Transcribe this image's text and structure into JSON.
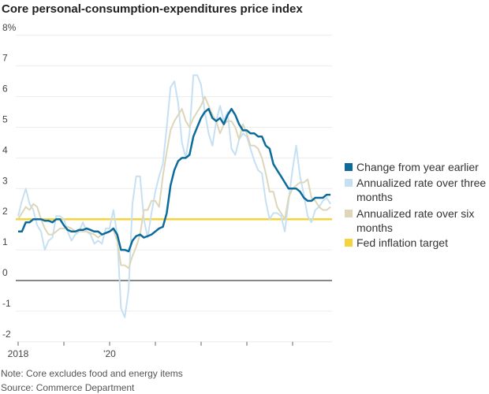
{
  "title": "Core personal-consumption-expenditures price index",
  "notes": [
    "Note: Core excludes food and energy items",
    "Source: Commerce Department"
  ],
  "chart_data": {
    "type": "line",
    "title": "Core personal-consumption-expenditures price index",
    "xlabel": "",
    "ylabel": "",
    "x_start": "2018-01",
    "x_freq": "monthly",
    "x_tick_labels": [
      "2018",
      "'20"
    ],
    "y_ticks": [
      8,
      7,
      6,
      5,
      4,
      3,
      2,
      1,
      0,
      -1,
      -2
    ],
    "y_tick_labels": [
      "8%",
      "7",
      "6",
      "5",
      "4",
      "3",
      "2",
      "1",
      "0",
      "-1",
      "-2"
    ],
    "ylim": [
      -2,
      8
    ],
    "grid": true,
    "legend_placement": "right",
    "reference_line": {
      "name": "Fed inflation target",
      "value": 2,
      "color": "#f5d33f"
    },
    "series": [
      {
        "name": "Annualized rate over three months",
        "color": "#c6e0f3",
        "values": [
          2.1,
          2.6,
          3.0,
          2.5,
          2.3,
          1.8,
          1.6,
          1.0,
          1.3,
          1.4,
          2.1,
          2.1,
          2.0,
          1.6,
          1.3,
          1.5,
          1.6,
          1.9,
          1.6,
          1.5,
          1.2,
          1.3,
          1.2,
          1.7,
          1.7,
          2.3,
          1.5,
          -0.9,
          -1.2,
          -0.3,
          2.5,
          3.4,
          3.4,
          2.0,
          1.4,
          2.2,
          2.9,
          3.4,
          3.8,
          5.0,
          6.3,
          6.5,
          5.8,
          4.5,
          4.0,
          4.8,
          6.7,
          6.7,
          6.4,
          5.5,
          4.8,
          4.4,
          5.2,
          5.7,
          5.2,
          5.5,
          4.3,
          4.1,
          4.6,
          4.8,
          4.7,
          4.3,
          3.9,
          3.6,
          3.5,
          2.6,
          2.0,
          2.2,
          2.2,
          2.1,
          1.6,
          2.6,
          3.6,
          4.4,
          3.4,
          2.8,
          2.1,
          1.9,
          2.3,
          2.4,
          2.6,
          2.7,
          2.5
        ]
      },
      {
        "name": "Annualized rate over six months",
        "color": "#ddd6b8",
        "values": [
          2.0,
          2.2,
          2.4,
          2.3,
          2.5,
          2.4,
          2.0,
          1.7,
          1.5,
          1.5,
          1.6,
          1.7,
          1.7,
          1.75,
          1.7,
          1.6,
          1.6,
          1.6,
          1.6,
          1.55,
          1.5,
          1.4,
          1.5,
          1.55,
          1.6,
          1.65,
          1.3,
          0.5,
          0.5,
          0.4,
          0.8,
          1.1,
          1.5,
          2.3,
          2.3,
          2.6,
          2.6,
          2.4,
          3.4,
          4.2,
          4.9,
          5.2,
          5.4,
          5.6,
          5.2,
          5.0,
          5.3,
          5.5,
          5.7,
          6.0,
          5.7,
          5.4,
          5.2,
          4.8,
          5.1,
          5.2,
          5.2,
          5.0,
          4.6,
          5.1,
          4.8,
          4.4,
          4.4,
          4.3,
          4.0,
          3.5,
          2.9,
          2.9,
          2.4,
          2.2,
          2.0,
          2.7,
          3.0,
          3.1,
          3.2,
          3.2,
          3.3,
          2.7,
          2.6,
          2.4,
          2.3,
          2.3,
          2.4
        ]
      },
      {
        "name": "Change from year earlier",
        "color": "#0b6b9a",
        "values": [
          1.6,
          1.6,
          1.9,
          1.9,
          2.0,
          2.0,
          2.0,
          1.95,
          1.95,
          1.9,
          2.0,
          2.0,
          1.8,
          1.65,
          1.6,
          1.6,
          1.65,
          1.65,
          1.7,
          1.65,
          1.6,
          1.6,
          1.5,
          1.55,
          1.6,
          1.7,
          1.5,
          1.0,
          1.0,
          0.95,
          1.3,
          1.45,
          1.5,
          1.4,
          1.45,
          1.5,
          1.6,
          1.7,
          1.75,
          2.2,
          3.1,
          3.6,
          3.9,
          4.0,
          4.0,
          4.1,
          4.7,
          5.0,
          5.3,
          5.5,
          5.6,
          5.3,
          5.2,
          5.3,
          5.1,
          5.4,
          5.6,
          5.4,
          5.1,
          4.9,
          4.9,
          4.8,
          4.8,
          4.7,
          4.7,
          4.4,
          4.3,
          3.8,
          3.6,
          3.4,
          3.2,
          3.0,
          3.0,
          3.0,
          2.9,
          2.7,
          2.6,
          2.6,
          2.7,
          2.7,
          2.7,
          2.8,
          2.8
        ]
      }
    ],
    "legend": [
      "Change from year earlier",
      "Annualized rate over three months",
      "Annualized rate over six months",
      "Fed inflation target"
    ]
  }
}
